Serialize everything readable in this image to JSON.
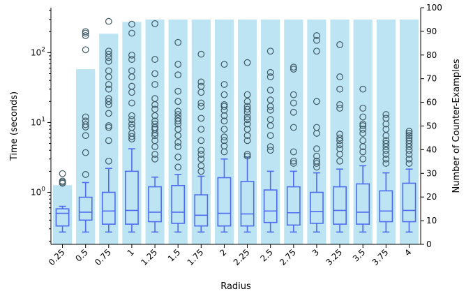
{
  "chart_data": {
    "type": "box+bar",
    "xlabel": "Radius",
    "ylabel_left": "Time (seconds)",
    "ylabel_right": "Number of Counter-Examples",
    "left_axis": {
      "scale": "log",
      "range": [
        0.18,
        440
      ],
      "ticks": [
        1,
        10,
        100
      ],
      "tick_labels": [
        "10",
        "10",
        "10"
      ],
      "tick_exponents": [
        "0",
        "1",
        "2"
      ]
    },
    "right_axis": {
      "scale": "linear",
      "range": [
        0,
        100
      ],
      "ticks": [
        0,
        10,
        20,
        30,
        40,
        50,
        60,
        70,
        80,
        90,
        100
      ]
    },
    "categories": [
      "0.25",
      "0.5",
      "0.75",
      "1",
      "1.25",
      "1.5",
      "1.75",
      "2",
      "2.25",
      "2.5",
      "2.75",
      "3",
      "3.25",
      "3.5",
      "3.75",
      "4"
    ],
    "counter_examples": [
      25,
      74,
      89,
      94,
      95,
      95,
      95,
      95,
      95,
      95,
      95,
      95,
      95,
      95,
      95,
      95
    ],
    "boxes": [
      {
        "whislo": 0.27,
        "q1": 0.33,
        "med": 0.5,
        "q3": 0.58,
        "whishi": 0.63,
        "fliers": [
          1.35,
          1.45,
          1.85,
          1.4
        ]
      },
      {
        "whislo": 0.27,
        "q1": 0.4,
        "med": 0.52,
        "q3": 0.85,
        "whishi": 1.38,
        "fliers": [
          1.8,
          3.7,
          6.5,
          8.6,
          9.3,
          10.5,
          12,
          110,
          175,
          190,
          200
        ]
      },
      {
        "whislo": 0.27,
        "q1": 0.35,
        "med": 0.54,
        "q3": 1.0,
        "whishi": 2.2,
        "fliers": [
          2.8,
          5.5,
          8.5,
          9,
          13.5,
          18,
          20,
          22,
          30,
          35,
          45,
          55,
          75,
          85,
          95,
          105,
          280
        ]
      },
      {
        "whislo": 0.27,
        "q1": 0.35,
        "med": 0.55,
        "q3": 2.0,
        "whishi": 4.2,
        "fliers": [
          5.8,
          6.3,
          7,
          8.5,
          9.5,
          11,
          12.5,
          19,
          27,
          33,
          45,
          55,
          80,
          92,
          190,
          255
        ]
      },
      {
        "whislo": 0.27,
        "q1": 0.38,
        "med": 0.52,
        "q3": 1.2,
        "whishi": 1.65,
        "fliers": [
          3.0,
          3.5,
          4.5,
          5.5,
          6.5,
          7,
          8,
          8.5,
          9.5,
          10.5,
          12.5,
          15.5,
          18,
          22,
          35,
          50,
          80,
          260
        ]
      },
      {
        "whislo": 0.27,
        "q1": 0.36,
        "med": 0.52,
        "q3": 1.25,
        "whishi": 1.8,
        "fliers": [
          2.3,
          3.2,
          4.5,
          5.2,
          6.5,
          8,
          9.5,
          10.5,
          11.5,
          13,
          14.5,
          20,
          28,
          48,
          68,
          140
        ]
      },
      {
        "whislo": 0.27,
        "q1": 0.33,
        "med": 0.47,
        "q3": 0.92,
        "whishi": 1.7,
        "fliers": [
          2.0,
          2.4,
          3,
          3.5,
          4,
          5.5,
          8,
          11.5,
          17,
          19,
          27,
          33,
          38,
          95
        ]
      },
      {
        "whislo": 0.27,
        "q1": 0.33,
        "med": 0.5,
        "q3": 1.62,
        "whishi": 3.0,
        "fliers": [
          3.8,
          4.6,
          5.5,
          6.2,
          8,
          10.5,
          12.5,
          15,
          17,
          18,
          25,
          35,
          68
        ]
      },
      {
        "whislo": 0.27,
        "q1": 0.33,
        "med": 0.49,
        "q3": 1.43,
        "whishi": 3.2,
        "fliers": [
          3.3,
          3.5,
          5.5,
          6.5,
          8,
          9.5,
          11,
          12,
          14,
          15.5,
          17,
          20,
          25,
          72
        ]
      },
      {
        "whislo": 0.27,
        "q1": 0.37,
        "med": 0.54,
        "q3": 1.08,
        "whishi": 2.0,
        "fliers": [
          4.0,
          4.5,
          6.5,
          9,
          11,
          15,
          17,
          21,
          29,
          45,
          52,
          105
        ]
      },
      {
        "whislo": 0.27,
        "q1": 0.34,
        "med": 0.51,
        "q3": 1.2,
        "whishi": 2.0,
        "fliers": [
          2.6,
          2.8,
          3.8,
          8.5,
          14,
          19,
          25,
          58,
          62
        ]
      },
      {
        "whislo": 0.27,
        "q1": 0.36,
        "med": 0.53,
        "q3": 1.0,
        "whishi": 1.9,
        "fliers": [
          2.3,
          2.6,
          2.8,
          3.3,
          4.2,
          7,
          8.5,
          20,
          105,
          150,
          175
        ]
      },
      {
        "whislo": 0.27,
        "q1": 0.35,
        "med": 0.55,
        "q3": 1.2,
        "whishi": 2.15,
        "fliers": [
          2.8,
          3.5,
          4.2,
          4.8,
          5.5,
          6,
          6.8,
          16,
          18,
          30,
          45,
          130
        ]
      },
      {
        "whislo": 0.27,
        "q1": 0.35,
        "med": 0.52,
        "q3": 1.32,
        "whishi": 2.4,
        "fliers": [
          3.0,
          3.8,
          4.5,
          5.5,
          7,
          8,
          9,
          9.5,
          12,
          16,
          30
        ]
      },
      {
        "whislo": 0.27,
        "q1": 0.38,
        "med": 0.54,
        "q3": 1.05,
        "whishi": 1.9,
        "fliers": [
          2.6,
          3,
          3.5,
          4,
          4.5,
          5,
          5.5,
          6.5,
          8,
          9.5,
          11.5,
          13
        ]
      },
      {
        "whislo": 0.27,
        "q1": 0.38,
        "med": 0.55,
        "q3": 1.35,
        "whishi": 2.15,
        "fliers": [
          2.6,
          3,
          3.5,
          4,
          4.5,
          5,
          5.5,
          6,
          6.5,
          7,
          7.5
        ]
      }
    ],
    "colors": {
      "bar": "#bde4f3",
      "box": "#4f6cf0",
      "flier": "#3f5a66"
    },
    "grid": false
  }
}
